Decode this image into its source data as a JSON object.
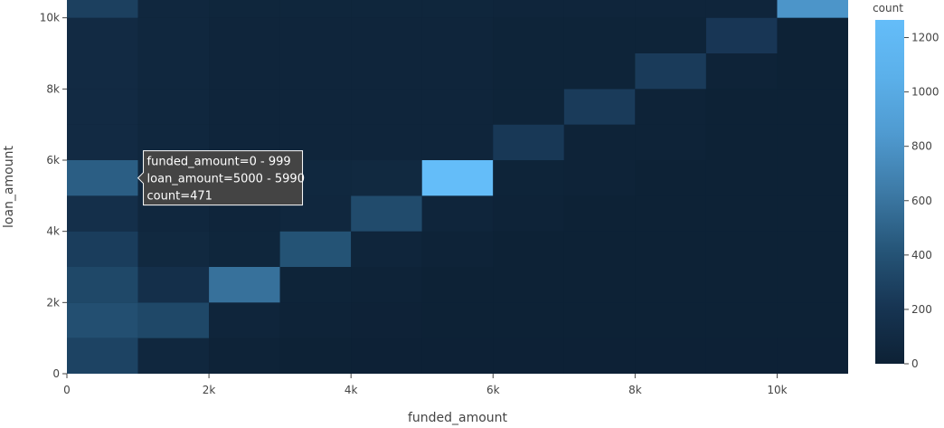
{
  "chart_data": {
    "type": "heatmap",
    "title": "",
    "xlabel": "funded_amount",
    "ylabel": "loan_amount",
    "x_bin_width": 1000,
    "y_bin_width": 1000,
    "xlim": [
      0,
      11000
    ],
    "ylim": [
      0,
      10500
    ],
    "x_ticks": [
      {
        "value": 0,
        "label": "0"
      },
      {
        "value": 2000,
        "label": "2k"
      },
      {
        "value": 4000,
        "label": "4k"
      },
      {
        "value": 6000,
        "label": "6k"
      },
      {
        "value": 8000,
        "label": "8k"
      },
      {
        "value": 10000,
        "label": "10k"
      }
    ],
    "y_ticks": [
      {
        "value": 0,
        "label": "0"
      },
      {
        "value": 2000,
        "label": "2k"
      },
      {
        "value": 4000,
        "label": "4k"
      },
      {
        "value": 6000,
        "label": "6k"
      },
      {
        "value": 8000,
        "label": "8k"
      },
      {
        "value": 10000,
        "label": "10k"
      }
    ],
    "colorbar": {
      "title": "count",
      "zmin": 0,
      "zmax": 1265,
      "ticks": [
        0,
        200,
        400,
        600,
        800,
        1000,
        1200
      ],
      "colorscale": [
        "#0d2135",
        "#173553",
        "#265679",
        "#3d7aa6",
        "#4f9ad0",
        "#5bb0ea",
        "#64bdf9"
      ]
    },
    "z_rows_bottom_to_top": [
      [
        300,
        60,
        20,
        10,
        5,
        5,
        5,
        5,
        5,
        5,
        5
      ],
      [
        380,
        330,
        40,
        20,
        15,
        10,
        10,
        10,
        10,
        10,
        10
      ],
      [
        330,
        150,
        580,
        30,
        20,
        10,
        10,
        10,
        10,
        10,
        10
      ],
      [
        260,
        80,
        50,
        400,
        40,
        20,
        10,
        10,
        10,
        10,
        10
      ],
      [
        150,
        60,
        40,
        60,
        350,
        40,
        20,
        10,
        10,
        10,
        10
      ],
      [
        471,
        60,
        50,
        70,
        80,
        1265,
        30,
        20,
        10,
        10,
        10
      ],
      [
        100,
        60,
        40,
        40,
        40,
        40,
        230,
        20,
        20,
        10,
        10
      ],
      [
        100,
        60,
        40,
        40,
        40,
        40,
        30,
        250,
        20,
        10,
        10
      ],
      [
        100,
        60,
        40,
        40,
        40,
        40,
        30,
        30,
        250,
        20,
        10
      ],
      [
        100,
        60,
        40,
        40,
        40,
        40,
        30,
        30,
        30,
        220,
        10
      ],
      [
        280,
        60,
        50,
        50,
        50,
        50,
        40,
        40,
        40,
        40,
        810
      ]
    ]
  },
  "tooltip": {
    "lines": [
      "funded_amount=0 - 999",
      "loan_amount=5000 - 5990",
      "count=471"
    ]
  }
}
